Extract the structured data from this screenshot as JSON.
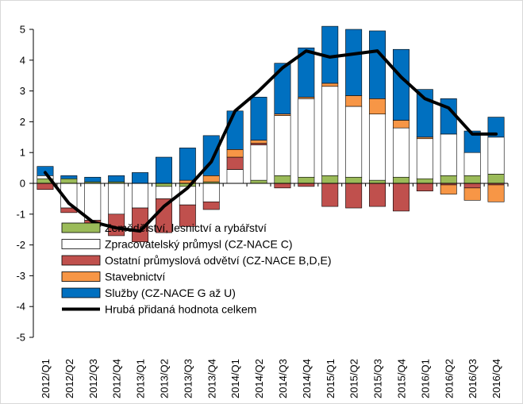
{
  "chart_data": {
    "type": "bar",
    "stacked": true,
    "categories": [
      "2012/Q1",
      "2012/Q2",
      "2012/Q3",
      "2012/Q4",
      "2013/Q1",
      "2013/Q2",
      "2013/Q3",
      "2013/Q4",
      "2014/Q1",
      "2014/Q2",
      "2014/Q3",
      "2014/Q4",
      "2015/Q1",
      "2015/Q2",
      "2015/Q3",
      "2015/Q4",
      "2016/Q1",
      "2016/Q2",
      "2016/Q3",
      "2016/Q4"
    ],
    "ylim": [
      -5,
      5
    ],
    "yticks": [
      "5",
      "4",
      "3",
      "2",
      "1",
      "0",
      "-1",
      "-2",
      "-3",
      "-4",
      "-5"
    ],
    "grid": false,
    "legend_position": "bottom-left",
    "series": [
      {
        "name": "Zemědělství, lesnictví a rybářství",
        "kind": "bar",
        "color": "#9bbb59",
        "values": [
          0.15,
          0.15,
          0.05,
          0.05,
          0.0,
          -0.1,
          -0.1,
          0.05,
          0.0,
          0.1,
          0.25,
          0.2,
          0.25,
          0.2,
          0.1,
          0.2,
          0.15,
          0.25,
          0.25,
          0.3
        ]
      },
      {
        "name": "Zpracovatelský průmysl (CZ-NACE C)",
        "kind": "bar",
        "color": "#ffffff",
        "values": [
          0.1,
          -0.8,
          -1.2,
          -1.0,
          -0.8,
          -0.4,
          -0.6,
          -0.6,
          0.45,
          1.15,
          1.95,
          2.55,
          2.9,
          2.3,
          2.15,
          1.6,
          1.3,
          1.35,
          0.75,
          1.2
        ]
      },
      {
        "name": "Ostatní průmyslová odvětví (CZ-NACE B,D,E)",
        "kind": "bar",
        "color": "#c0504d",
        "values": [
          -0.2,
          -0.15,
          -0.2,
          -0.7,
          -1.1,
          -1.1,
          -0.7,
          -0.25,
          0.4,
          0.05,
          -0.15,
          -0.1,
          -0.75,
          -0.8,
          -0.75,
          -0.9,
          -0.25,
          -0.05,
          -0.15,
          -0.05
        ]
      },
      {
        "name": "Stavebnictví",
        "kind": "bar",
        "color": "#f79646",
        "values": [
          0.0,
          0.0,
          0.0,
          0.0,
          0.0,
          0.0,
          0.1,
          0.2,
          0.25,
          0.1,
          0.05,
          0.05,
          0.1,
          0.35,
          0.5,
          0.25,
          0.05,
          -0.3,
          -0.4,
          -0.55
        ]
      },
      {
        "name": "Služby (CZ-NACE G až U)",
        "kind": "bar",
        "color": "#0070c0",
        "values": [
          0.3,
          0.1,
          0.15,
          0.2,
          0.35,
          0.85,
          1.05,
          1.3,
          1.25,
          1.4,
          1.65,
          1.6,
          1.85,
          2.15,
          2.2,
          2.3,
          1.55,
          1.15,
          0.7,
          0.65
        ]
      },
      {
        "name": "Hrubá přidaná hodnota celkem",
        "kind": "line",
        "color": "#000000",
        "values": [
          0.35,
          -0.65,
          -1.25,
          -1.45,
          -1.55,
          -0.75,
          -0.15,
          0.7,
          2.35,
          3.0,
          3.75,
          4.3,
          4.1,
          4.2,
          4.3,
          3.45,
          2.75,
          2.45,
          1.6,
          1.6
        ]
      }
    ]
  }
}
